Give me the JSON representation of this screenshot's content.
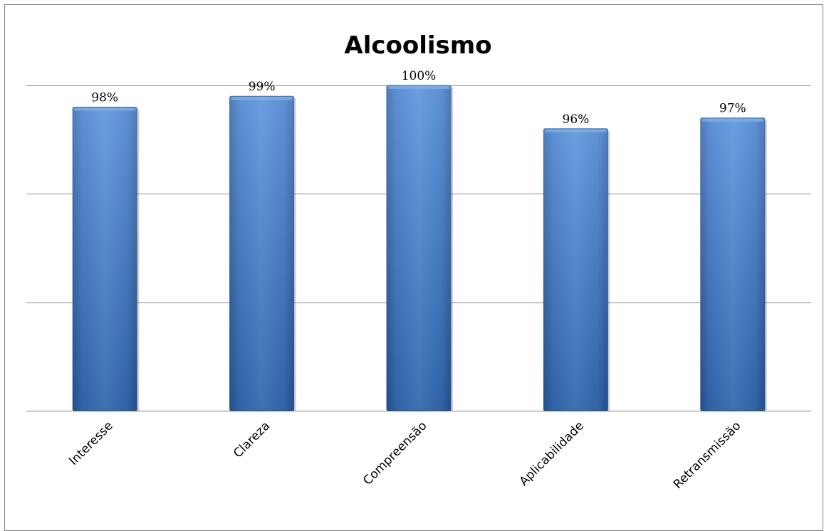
{
  "chart_data": {
    "type": "bar",
    "title": "Alcoolismo",
    "xlabel": "",
    "ylabel": "",
    "categories": [
      "Interesse",
      "Clareza",
      "Compreensão",
      "Aplicabilidade",
      "Retransmissão"
    ],
    "values": [
      98,
      99,
      100,
      96,
      97
    ],
    "data_labels": [
      "98%",
      "99%",
      "100%",
      "96%",
      "97%"
    ],
    "ylim": [
      70,
      100
    ],
    "grid": true,
    "legend": "none",
    "bar_color": "#3a78c9"
  }
}
